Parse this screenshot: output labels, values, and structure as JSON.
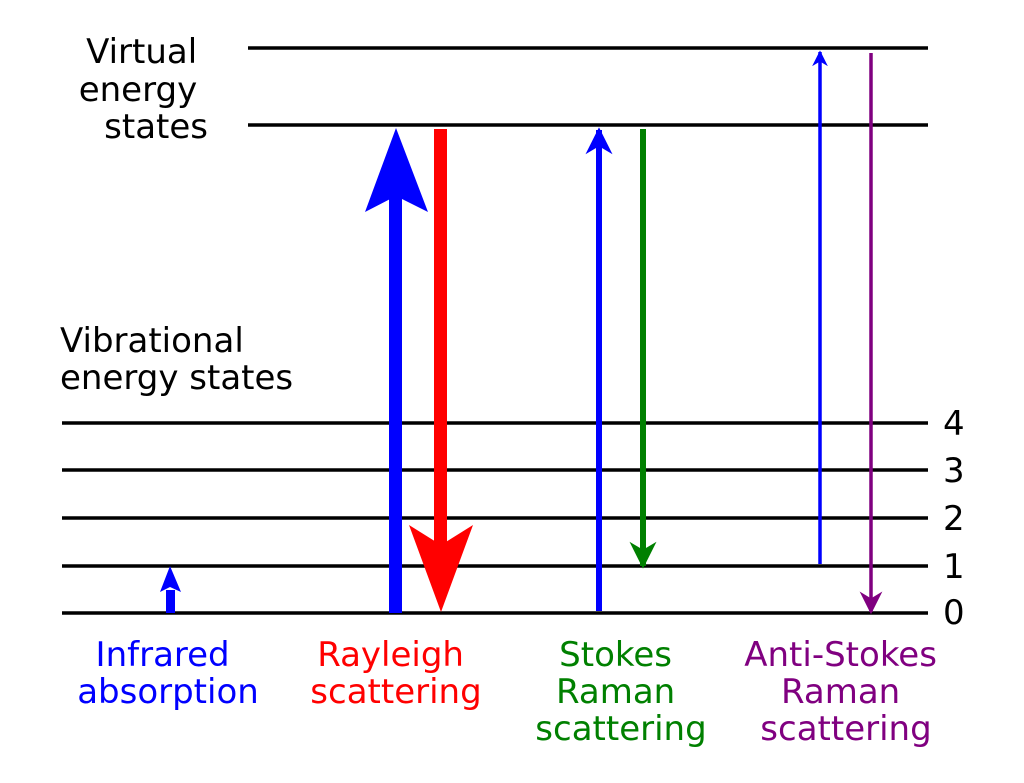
{
  "labels": {
    "virtual": [
      "Virtual",
      "energy",
      "states"
    ],
    "vibrational": [
      "Vibrational",
      "energy states"
    ]
  },
  "level_numbers": [
    "4",
    "3",
    "2",
    "1",
    "0"
  ],
  "processes": [
    {
      "key": "infrared",
      "lines": [
        "Infrared",
        "absorption"
      ],
      "color": "#0000ff"
    },
    {
      "key": "rayleigh",
      "lines": [
        "Rayleigh",
        "scattering"
      ],
      "color": "#ff0000"
    },
    {
      "key": "stokes",
      "lines": [
        "Stokes",
        "Raman",
        "scattering"
      ],
      "color": "#008000"
    },
    {
      "key": "anti-stokes",
      "lines": [
        "Anti-Stokes",
        "Raman",
        "scattering"
      ],
      "color": "#800080"
    }
  ],
  "colors": {
    "line": "#000000",
    "absorption_arrow": "#0000ff",
    "rayleigh_emission": "#ff0000",
    "stokes_emission": "#008000",
    "anti_stokes_emission": "#800080"
  }
}
